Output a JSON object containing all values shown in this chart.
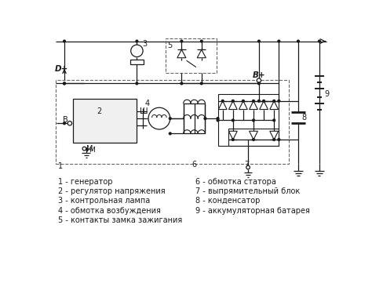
{
  "legend_left": [
    "1 - генератор",
    "2 - регулятор напряжения",
    "3 - контрольная лампа",
    "4 - обмотка возбуждения",
    "5 - контакты замка зажигания"
  ],
  "legend_right": [
    "6 - обмотка статора",
    "7 - выпрямительный блок",
    "8 - конденсатор",
    "9 - аккумуляторная батарея"
  ],
  "bg_color": "#ffffff",
  "line_color": "#1a1a1a",
  "dashed_color": "#666666",
  "label_color": "#1a1a1a",
  "font_size": 7.0
}
